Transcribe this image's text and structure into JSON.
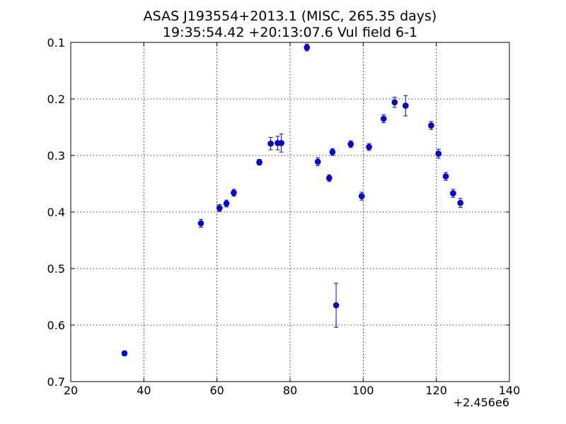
{
  "chart_data": {
    "type": "scatter",
    "title": "ASAS J193554+2013.1 (MISC, 265.35 days)",
    "subtitle": "19:35:54.42 +20:13:07.6 Vul field 6-1",
    "xlabel": "",
    "ylabel": "",
    "x_offset_label": "+2.456e6",
    "xlim": [
      20,
      140
    ],
    "ylim": [
      0.1,
      0.7
    ],
    "y_inverted": true,
    "grid": true,
    "x_ticks": [
      20,
      40,
      60,
      80,
      100,
      120,
      140
    ],
    "x_tick_labels": [
      "20",
      "40",
      "60",
      "80",
      "100",
      "120",
      "140"
    ],
    "y_ticks": [
      0.1,
      0.2,
      0.3,
      0.4,
      0.5,
      0.6,
      0.7
    ],
    "y_tick_labels": [
      "0.1",
      "0.2",
      "0.3",
      "0.4",
      "0.5",
      "0.6",
      "0.7"
    ],
    "marker_color": "#0000ff",
    "points": [
      {
        "x": 34.7,
        "y": 0.65,
        "err": 0.004
      },
      {
        "x": 55.6,
        "y": 0.42,
        "err": 0.007
      },
      {
        "x": 60.7,
        "y": 0.393,
        "err": 0.006
      },
      {
        "x": 62.6,
        "y": 0.385,
        "err": 0.006
      },
      {
        "x": 64.6,
        "y": 0.366,
        "err": 0.006
      },
      {
        "x": 71.6,
        "y": 0.312,
        "err": 0.005
      },
      {
        "x": 74.7,
        "y": 0.279,
        "err": 0.011
      },
      {
        "x": 76.6,
        "y": 0.278,
        "err": 0.012
      },
      {
        "x": 77.6,
        "y": 0.278,
        "err": 0.016
      },
      {
        "x": 84.6,
        "y": 0.109,
        "err": 0.006
      },
      {
        "x": 87.6,
        "y": 0.311,
        "err": 0.007
      },
      {
        "x": 90.7,
        "y": 0.34,
        "err": 0.006
      },
      {
        "x": 91.6,
        "y": 0.294,
        "err": 0.006
      },
      {
        "x": 92.6,
        "y": 0.565,
        "err": 0.039
      },
      {
        "x": 96.6,
        "y": 0.28,
        "err": 0.006
      },
      {
        "x": 99.6,
        "y": 0.372,
        "err": 0.007
      },
      {
        "x": 101.6,
        "y": 0.285,
        "err": 0.006
      },
      {
        "x": 105.6,
        "y": 0.235,
        "err": 0.007
      },
      {
        "x": 108.6,
        "y": 0.206,
        "err": 0.009
      },
      {
        "x": 111.6,
        "y": 0.212,
        "err": 0.018
      },
      {
        "x": 118.6,
        "y": 0.247,
        "err": 0.007
      },
      {
        "x": 120.6,
        "y": 0.297,
        "err": 0.008
      },
      {
        "x": 122.6,
        "y": 0.337,
        "err": 0.007
      },
      {
        "x": 124.6,
        "y": 0.367,
        "err": 0.007
      },
      {
        "x": 126.6,
        "y": 0.384,
        "err": 0.008
      }
    ]
  }
}
